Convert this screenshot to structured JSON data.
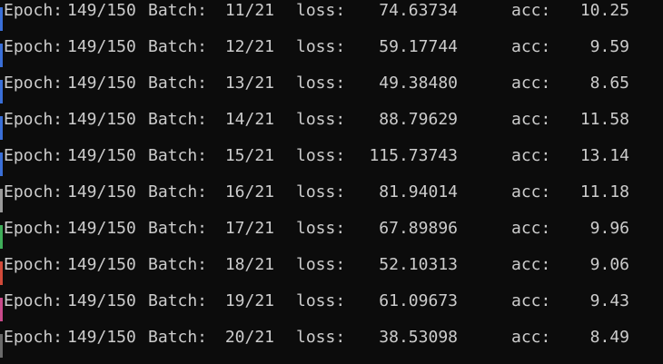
{
  "window": {
    "background": "#0c0c0c",
    "text_color": "#cccccc"
  },
  "labels": {
    "epoch": "Epoch:",
    "batch": "Batch:",
    "loss": "loss:",
    "acc": "acc:"
  },
  "lines": [
    {
      "epoch": "149/150",
      "batch": "11/21",
      "loss": "74.63734",
      "acc": "10.25"
    },
    {
      "epoch": "149/150",
      "batch": "12/21",
      "loss": "59.17744",
      "acc": "9.59"
    },
    {
      "epoch": "149/150",
      "batch": "13/21",
      "loss": "49.38480",
      "acc": "8.65"
    },
    {
      "epoch": "149/150",
      "batch": "14/21",
      "loss": "88.79629",
      "acc": "11.58"
    },
    {
      "epoch": "149/150",
      "batch": "15/21",
      "loss": "115.73743",
      "acc": "13.14"
    },
    {
      "epoch": "149/150",
      "batch": "16/21",
      "loss": "81.94014",
      "acc": "11.18"
    },
    {
      "epoch": "149/150",
      "batch": "17/21",
      "loss": "67.89896",
      "acc": "9.96"
    },
    {
      "epoch": "149/150",
      "batch": "18/21",
      "loss": "52.10313",
      "acc": "9.06"
    },
    {
      "epoch": "149/150",
      "batch": "19/21",
      "loss": "61.09673",
      "acc": "9.43"
    },
    {
      "epoch": "149/150",
      "batch": "20/21",
      "loss": "38.53098",
      "acc": "8.49"
    }
  ],
  "edge_colors": [
    "#3a6fd8",
    "#3a6fd8",
    "#3a6fd8",
    "#3a6fd8",
    "#3a6fd8",
    "#9a9a9a",
    "#3fae5a",
    "#d24a3a",
    "#c84a8a",
    "#6a6a6a"
  ]
}
